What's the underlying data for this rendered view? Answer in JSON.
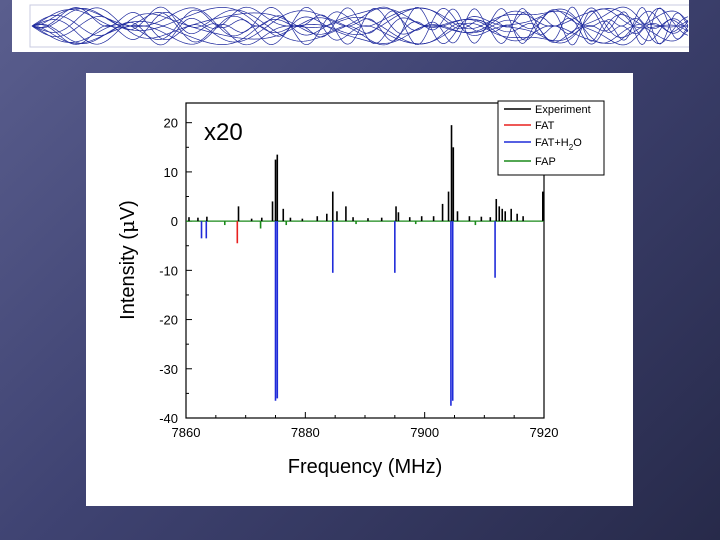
{
  "banner": {
    "pattern": "wave-interference-pattern",
    "color": "#1f2a9e"
  },
  "chart_data": {
    "type": "line",
    "annotation": "x20",
    "xlabel": "Frequency (MHz)",
    "ylabel_prefix": "Intensity (",
    "ylabel_mu": "μ",
    "ylabel_suffix": "V)",
    "xlim": [
      7860,
      7920
    ],
    "ylim": [
      -40,
      24
    ],
    "xticks": [
      "7860",
      "7880",
      "7900",
      "7920"
    ],
    "yticks": [
      "20",
      "10",
      "0",
      "-10",
      "-20",
      "-30",
      "-40"
    ],
    "legend_position": "top-right",
    "legend": {
      "experiment": "Experiment",
      "fat": "FAT",
      "fat_h2o_prefix": "FAT+H",
      "fat_h2o_sub": "2",
      "fat_h2o_suffix": "O",
      "fap": "FAP"
    },
    "series": [
      {
        "name": "Experiment",
        "color": "#000000",
        "peaks": [
          {
            "x": 7860.5,
            "y": 0.8
          },
          {
            "x": 7862.0,
            "y": 0.7
          },
          {
            "x": 7863.5,
            "y": 0.9
          },
          {
            "x": 7868.8,
            "y": 3.0
          },
          {
            "x": 7871.0,
            "y": 0.5
          },
          {
            "x": 7872.7,
            "y": 0.7
          },
          {
            "x": 7874.5,
            "y": 4.0
          },
          {
            "x": 7875.0,
            "y": 12.5
          },
          {
            "x": 7875.3,
            "y": 13.5
          },
          {
            "x": 7876.3,
            "y": 2.5
          },
          {
            "x": 7877.5,
            "y": 0.7
          },
          {
            "x": 7879.5,
            "y": 0.5
          },
          {
            "x": 7882.0,
            "y": 1.0
          },
          {
            "x": 7883.6,
            "y": 1.5
          },
          {
            "x": 7884.6,
            "y": 6.0
          },
          {
            "x": 7885.3,
            "y": 2.0
          },
          {
            "x": 7886.8,
            "y": 3.0
          },
          {
            "x": 7888.0,
            "y": 0.8
          },
          {
            "x": 7890.5,
            "y": 0.6
          },
          {
            "x": 7892.8,
            "y": 0.7
          },
          {
            "x": 7895.2,
            "y": 3.0
          },
          {
            "x": 7895.6,
            "y": 1.8
          },
          {
            "x": 7897.5,
            "y": 0.8
          },
          {
            "x": 7899.5,
            "y": 1.0
          },
          {
            "x": 7901.5,
            "y": 1.0
          },
          {
            "x": 7903.0,
            "y": 3.5
          },
          {
            "x": 7904.0,
            "y": 6.0
          },
          {
            "x": 7904.5,
            "y": 19.5
          },
          {
            "x": 7904.8,
            "y": 15.0
          },
          {
            "x": 7905.5,
            "y": 2.0
          },
          {
            "x": 7907.5,
            "y": 1.0
          },
          {
            "x": 7909.5,
            "y": 0.9
          },
          {
            "x": 7911.0,
            "y": 0.8
          },
          {
            "x": 7912.0,
            "y": 4.5
          },
          {
            "x": 7912.5,
            "y": 3.0
          },
          {
            "x": 7913.0,
            "y": 2.5
          },
          {
            "x": 7913.5,
            "y": 2.0
          },
          {
            "x": 7914.5,
            "y": 2.5
          },
          {
            "x": 7915.5,
            "y": 1.5
          },
          {
            "x": 7916.5,
            "y": 1.0
          },
          {
            "x": 7919.8,
            "y": 6.0
          }
        ]
      },
      {
        "name": "FAT",
        "color": "#e8201f",
        "peaks": [
          {
            "x": 7868.6,
            "y": -4.5
          }
        ]
      },
      {
        "name": "FAT+H2O",
        "color": "#1f2bd9",
        "peaks": [
          {
            "x": 7862.6,
            "y": -3.5
          },
          {
            "x": 7863.4,
            "y": -3.5
          },
          {
            "x": 7875.0,
            "y": -36.5
          },
          {
            "x": 7875.3,
            "y": -36.0
          },
          {
            "x": 7884.6,
            "y": -10.5
          },
          {
            "x": 7895.0,
            "y": -10.5
          },
          {
            "x": 7904.4,
            "y": -37.5
          },
          {
            "x": 7904.7,
            "y": -36.5
          },
          {
            "x": 7911.8,
            "y": -11.5
          }
        ]
      },
      {
        "name": "FAP",
        "color": "#1a8a1a",
        "peaks": [
          {
            "x": 7866.5,
            "y": -0.8
          },
          {
            "x": 7872.5,
            "y": -1.5
          },
          {
            "x": 7876.8,
            "y": -0.8
          },
          {
            "x": 7888.5,
            "y": -0.6
          },
          {
            "x": 7898.5,
            "y": -0.6
          },
          {
            "x": 7908.5,
            "y": -0.8
          }
        ]
      }
    ]
  }
}
